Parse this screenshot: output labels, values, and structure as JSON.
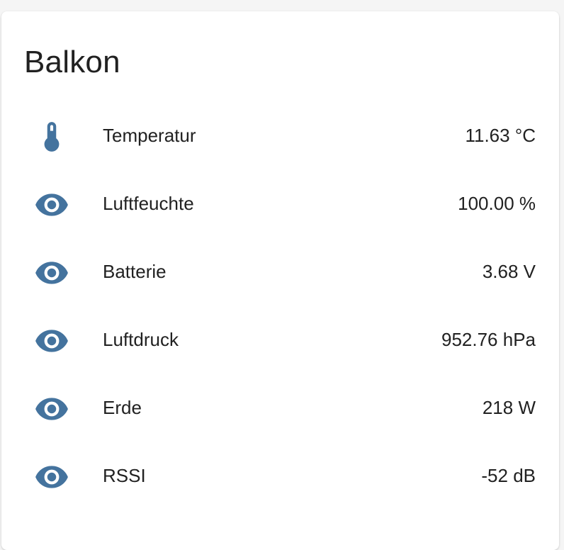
{
  "colors": {
    "icon": "#44739e",
    "text": "#212121",
    "card_background": "#ffffff",
    "page_background": "#f5f5f5"
  },
  "card": {
    "title": "Balkon"
  },
  "entities": [
    {
      "icon": "thermometer-icon",
      "label": "Temperatur",
      "value": "11.63 °C"
    },
    {
      "icon": "eye-icon",
      "label": "Luftfeuchte",
      "value": "100.00 %"
    },
    {
      "icon": "eye-icon",
      "label": "Batterie",
      "value": "3.68 V"
    },
    {
      "icon": "eye-icon",
      "label": "Luftdruck",
      "value": "952.76 hPa"
    },
    {
      "icon": "eye-icon",
      "label": "Erde",
      "value": "218 W"
    },
    {
      "icon": "eye-icon",
      "label": "RSSI",
      "value": "-52 dB"
    }
  ]
}
